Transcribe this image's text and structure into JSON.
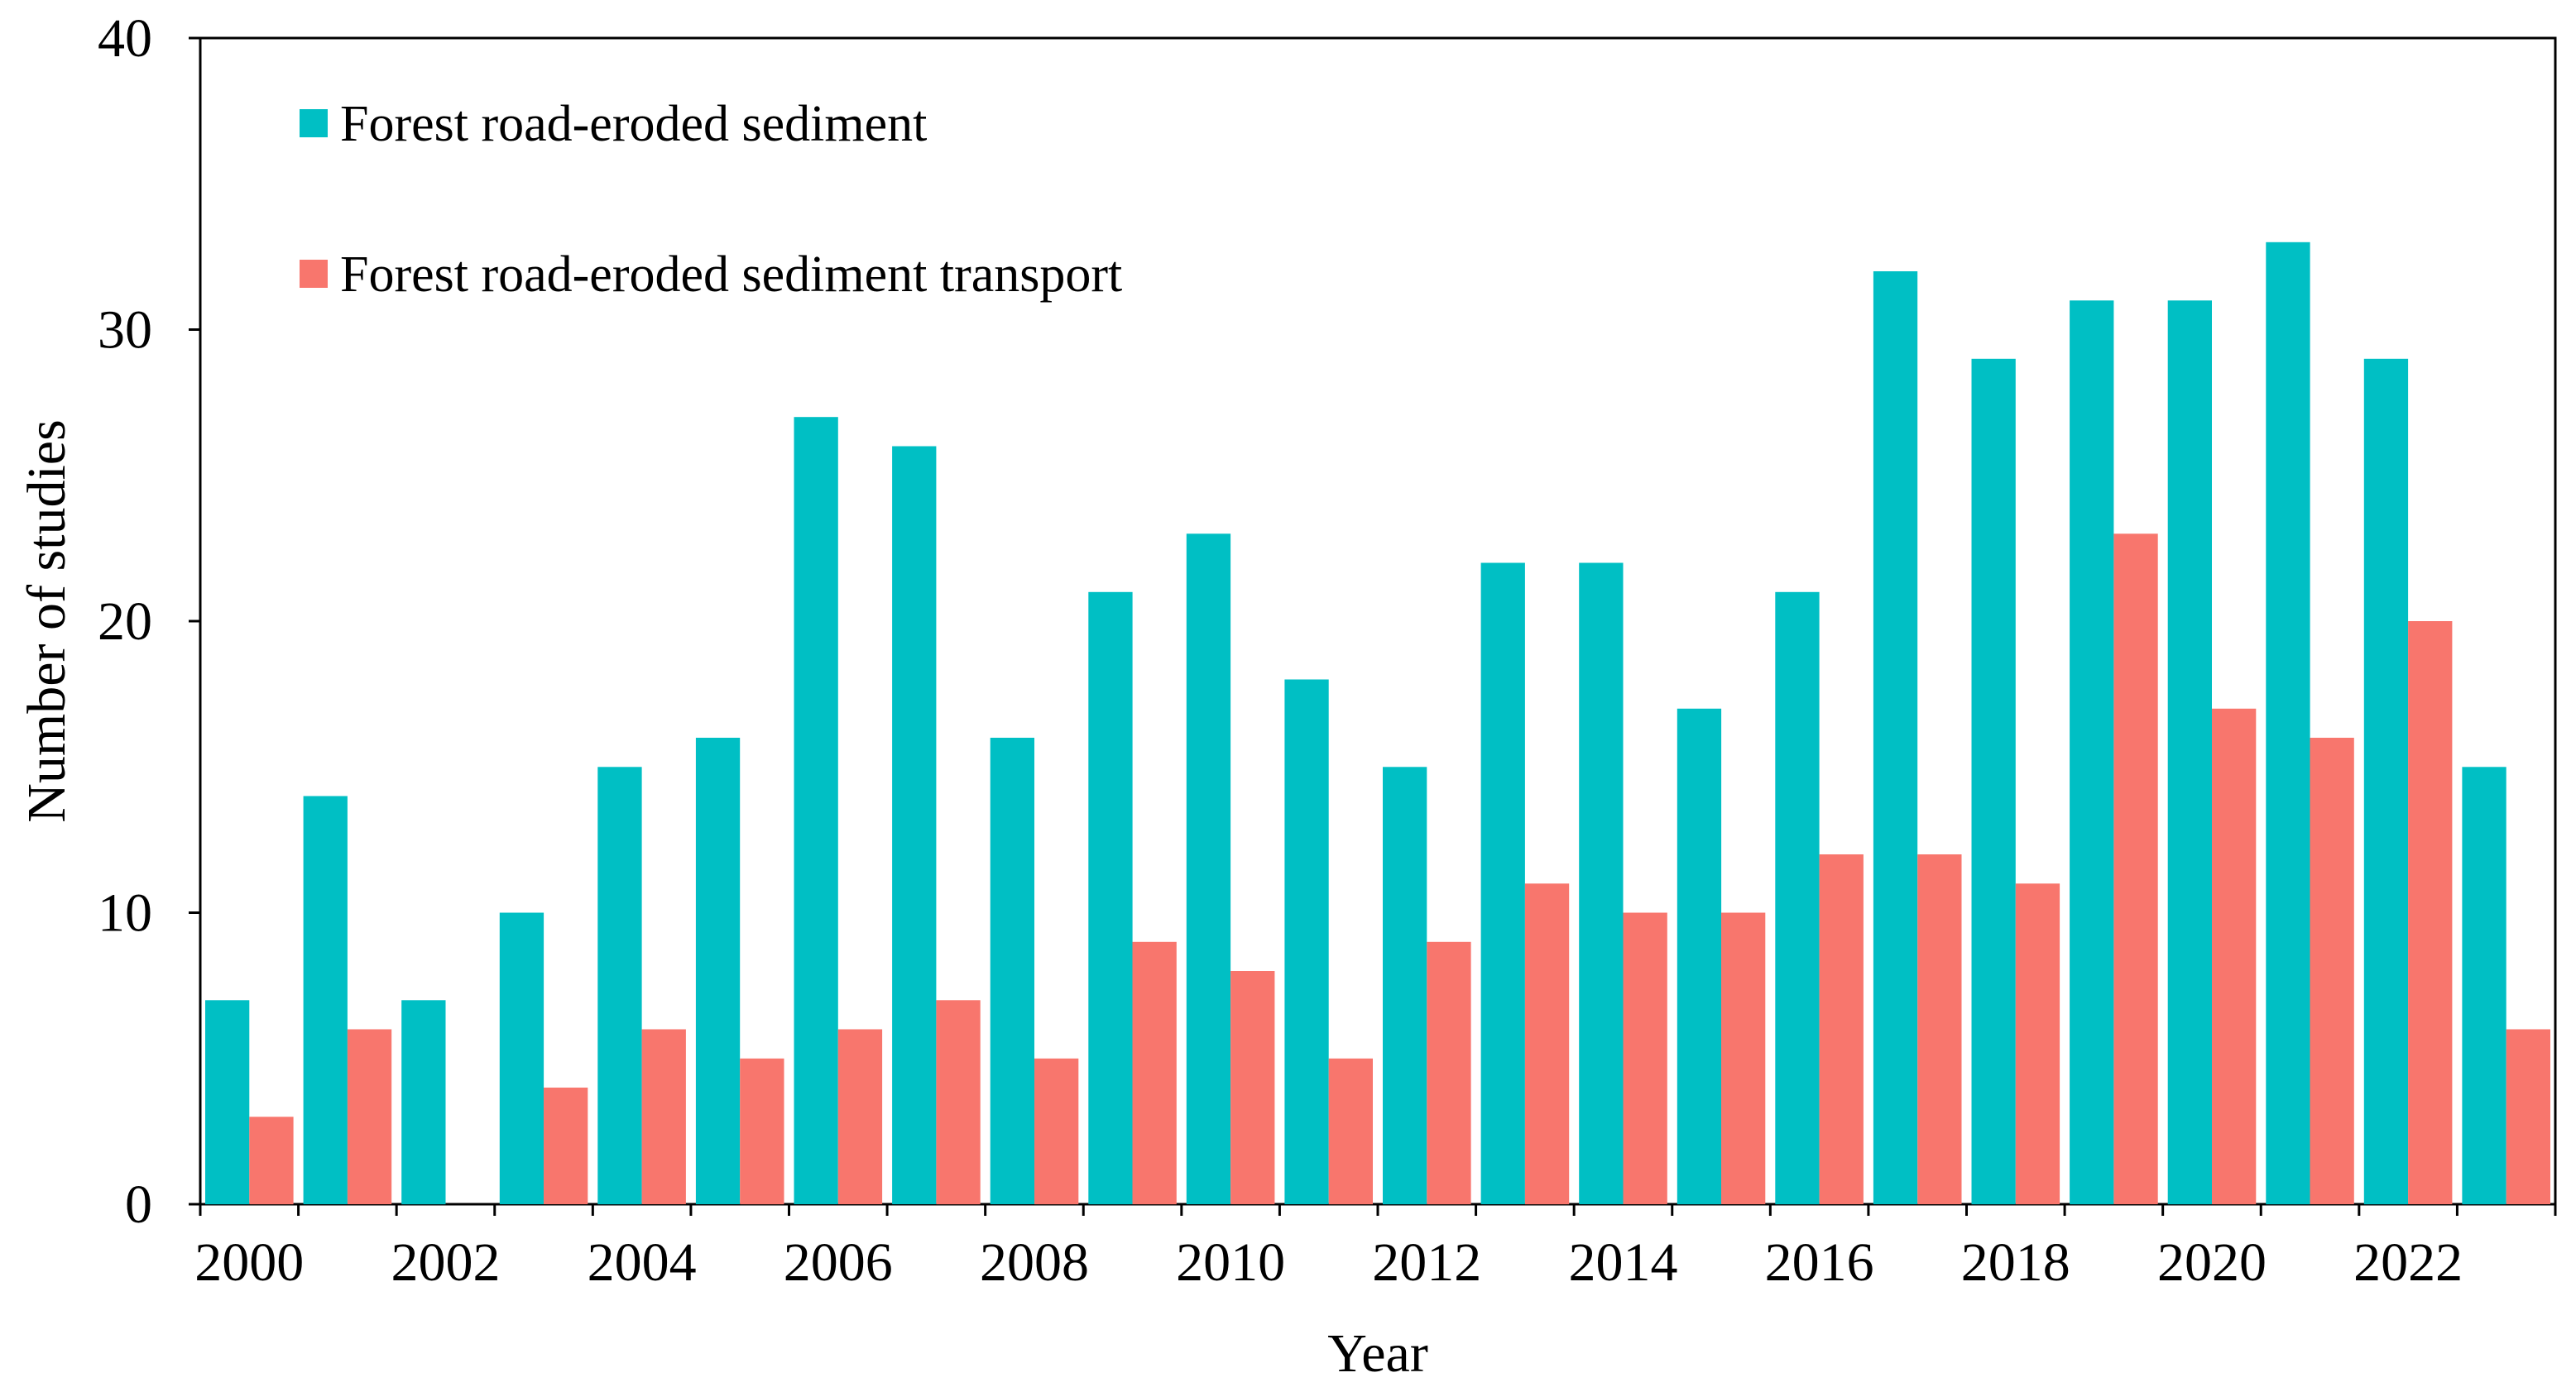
{
  "chart_data": {
    "type": "bar",
    "xlabel": "Year",
    "ylabel": "Number of studies",
    "ylim": [
      0,
      40
    ],
    "yticks": [
      0,
      10,
      20,
      30,
      40
    ],
    "categories": [
      "2000",
      "2001",
      "2002",
      "2003",
      "2004",
      "2005",
      "2006",
      "2007",
      "2008",
      "2009",
      "2010",
      "2011",
      "2012",
      "2013",
      "2014",
      "2015",
      "2016",
      "2017",
      "2018",
      "2019",
      "2020",
      "2021",
      "2022",
      "2023"
    ],
    "xtick_labels": [
      "2000",
      "",
      "2002",
      "",
      "2004",
      "",
      "2006",
      "",
      "2008",
      "",
      "2010",
      "",
      "2012",
      "",
      "2014",
      "",
      "2016",
      "",
      "2018",
      "",
      "2020",
      "",
      "2022",
      ""
    ],
    "series": [
      {
        "name": "Forest road-eroded sediment",
        "color": "#00BFC4",
        "values": [
          7,
          14,
          7,
          10,
          15,
          16,
          27,
          26,
          16,
          21,
          23,
          18,
          15,
          22,
          22,
          17,
          21,
          32,
          29,
          31,
          31,
          33,
          29,
          15
        ]
      },
      {
        "name": "Forest road-eroded sediment transport",
        "color": "#F8766D",
        "values": [
          3,
          6,
          0,
          4,
          6,
          5,
          6,
          7,
          5,
          9,
          8,
          5,
          9,
          11,
          10,
          10,
          12,
          12,
          11,
          23,
          17,
          16,
          20,
          6
        ]
      }
    ],
    "grid": false,
    "legend_position": "top-left"
  }
}
